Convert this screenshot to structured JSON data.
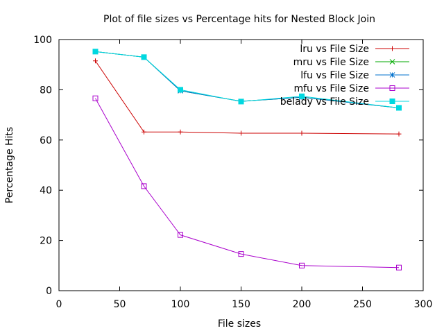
{
  "chart_data": {
    "type": "line",
    "title": "Plot of file sizes vs Percentage hits for Nested Block Join",
    "xlabel": "File sizes",
    "ylabel": "Percentage Hits",
    "xlim": [
      0,
      300
    ],
    "ylim": [
      0,
      100
    ],
    "xticks": [
      0,
      50,
      100,
      150,
      200,
      250,
      300
    ],
    "yticks": [
      0,
      20,
      40,
      60,
      80,
      100
    ],
    "grid": false,
    "legend_position": "top-right",
    "x": [
      30,
      70,
      100,
      150,
      200,
      280
    ],
    "series": [
      {
        "name": "lru vs File Size",
        "color": "#cc0000",
        "marker": "plus",
        "values": [
          91.5,
          63.2,
          63.2,
          62.7,
          62.7,
          62.4
        ]
      },
      {
        "name": "mru vs File Size",
        "color": "#00aa00",
        "marker": "cross",
        "values": [
          95.2,
          93.0,
          79.6,
          75.4,
          77.0,
          72.8
        ]
      },
      {
        "name": "lfu vs File Size",
        "color": "#0070cc",
        "marker": "star",
        "values": [
          95.2,
          93.0,
          79.6,
          75.4,
          77.0,
          72.8
        ]
      },
      {
        "name": "mfu vs File Size",
        "color": "#aa00cc",
        "marker": "open-square",
        "values": [
          76.6,
          41.6,
          22.2,
          14.6,
          10.0,
          9.2
        ]
      },
      {
        "name": "belady vs File Size",
        "color": "#00d8e0",
        "marker": "filled-square",
        "values": [
          95.2,
          93.0,
          80.0,
          75.3,
          77.4,
          72.8
        ]
      }
    ]
  }
}
